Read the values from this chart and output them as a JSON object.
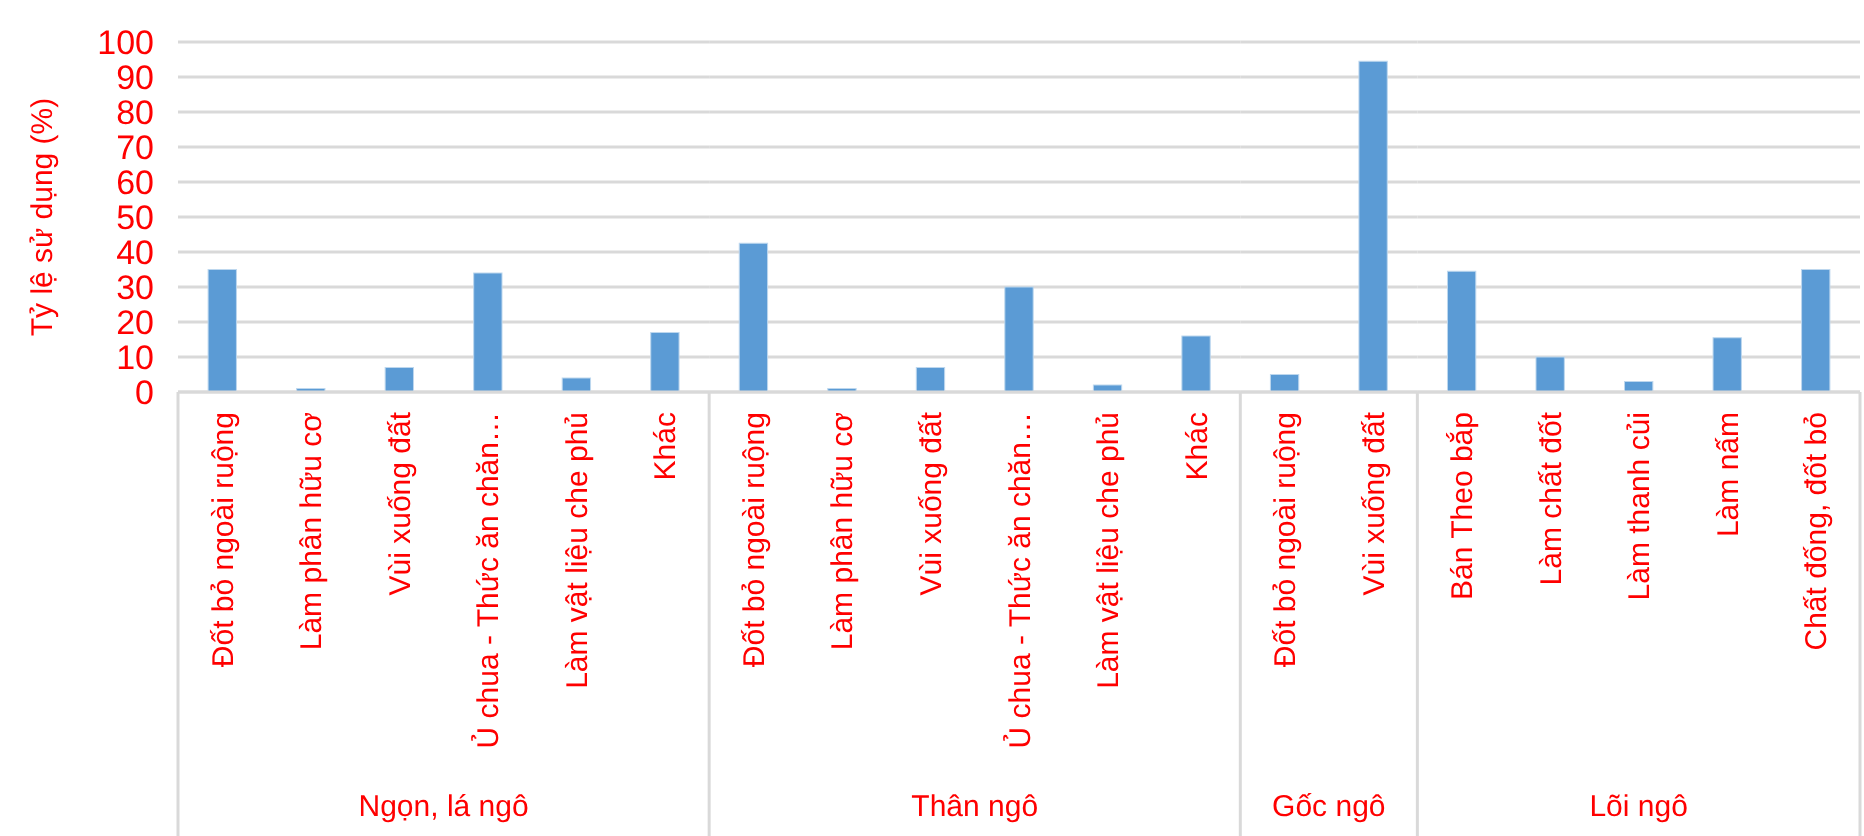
{
  "chart_data": [
    {
      "type": "bar",
      "ylabel": "Tỷ lệ sử dụng (%)",
      "xlabel": "Ngọn, lá ngô",
      "categories": [
        "Đốt bỏ ngoài ruộng",
        "Làm phân hữu cơ",
        "Vùi xuống đất",
        "Ủ chua - Thức ăn chăn…",
        "Làm vật liệu che phủ",
        "Khác"
      ],
      "values": [
        35,
        1,
        7,
        34,
        4,
        17
      ],
      "color": "#5b9bd5",
      "ylim": [
        0,
        100
      ],
      "yticks": [
        0,
        10,
        20,
        30,
        40,
        50,
        60,
        70,
        80,
        90,
        100
      ],
      "grid": "y"
    },
    {
      "type": "bar",
      "xlabel": "Thân ngô",
      "categories": [
        "Đốt bỏ ngoài ruộng",
        "Làm phân hữu cơ",
        "Vùi xuống đất",
        "Ủ chua - Thức ăn chăn…",
        "Làm vật liệu che phủ",
        "Khác"
      ],
      "values": [
        42.5,
        1,
        7,
        30,
        2,
        16
      ],
      "color": "#5b9bd5",
      "ylim": [
        0,
        100
      ],
      "yticks": [
        0,
        10,
        20,
        30,
        40,
        50,
        60,
        70,
        80,
        90,
        100
      ],
      "grid": "y",
      "tick_labels": "x"
    },
    {
      "type": "bar",
      "xlabel": "Gốc ngô",
      "categories": [
        "Đốt bỏ ngoài ruộng",
        "Vùi xuống đất"
      ],
      "values": [
        5,
        94.5
      ],
      "color": "#5b9bd5",
      "ylim": [
        0,
        100
      ],
      "yticks": [
        0,
        10,
        20,
        30,
        40,
        50,
        60,
        70,
        80,
        90,
        100
      ],
      "grid": "y",
      "tick_labels": "x"
    },
    {
      "type": "bar",
      "xlabel": "Lõi ngô",
      "categories": [
        "Bán Theo bắp",
        "Làm chất đốt",
        "Làm thanh củi",
        "Làm nấm",
        "Chất đống, đốt bỏ"
      ],
      "values": [
        34.5,
        10,
        3,
        15.5,
        35
      ],
      "color": "#5b9bd5",
      "ylim": [
        0,
        100
      ],
      "yticks": [
        0,
        10,
        20,
        30,
        40,
        50,
        60,
        70,
        80,
        90,
        100
      ],
      "grid": "y",
      "tick_labels": "x"
    }
  ]
}
